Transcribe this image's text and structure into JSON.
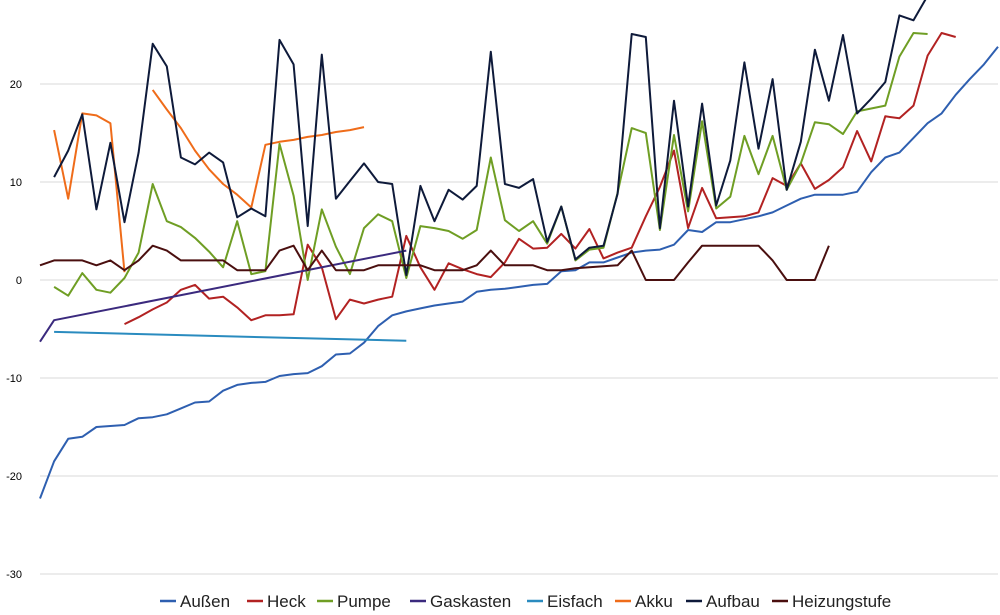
{
  "chart_data": {
    "type": "line",
    "title": "",
    "xlabel": "",
    "ylabel": "",
    "ylim": [
      -30,
      28
    ],
    "yticks": [
      -30,
      -20,
      -10,
      0,
      10,
      20
    ],
    "grid": "horizontal",
    "legend_position": "bottom",
    "series": [
      {
        "name": "Außen",
        "color": "#2e5fb0",
        "start": 0,
        "values": [
          -22.3,
          -18.5,
          -16.2,
          -16.0,
          -15.0,
          -14.9,
          -14.8,
          -14.1,
          -14.0,
          -13.7,
          -13.1,
          -12.5,
          -12.4,
          -11.3,
          -10.7,
          -10.5,
          -10.4,
          -9.8,
          -9.6,
          -9.5,
          -8.8,
          -7.6,
          -7.5,
          -6.4,
          -4.7,
          -3.6,
          -3.2,
          -2.9,
          -2.6,
          -2.4,
          -2.2,
          -1.2,
          -1.0,
          -0.9,
          -0.7,
          -0.5,
          -0.4,
          0.9,
          1.0,
          1.8,
          1.8,
          2.3,
          2.8,
          3.0,
          3.1,
          3.6,
          5.1,
          4.9,
          5.9,
          5.9,
          6.2,
          6.5,
          6.9,
          7.6,
          8.3,
          8.7,
          8.7,
          8.7,
          9.0,
          11.0,
          12.5,
          13.0,
          14.5,
          16.0,
          17.0,
          18.9,
          20.5,
          22.0,
          23.8
        ]
      },
      {
        "name": "Heck",
        "color": "#b22222",
        "start": 6,
        "values": [
          -4.5,
          -3.8,
          -3.0,
          -2.3,
          -1.0,
          -0.5,
          -1.9,
          -1.7,
          -2.8,
          -4.1,
          -3.6,
          -3.6,
          -3.5,
          3.6,
          1.3,
          -4.0,
          -2.0,
          -2.4,
          -2.0,
          -1.7,
          4.5,
          1.3,
          -1.0,
          1.7,
          1.1,
          0.6,
          0.3,
          1.8,
          4.2,
          3.2,
          3.3,
          4.7,
          3.2,
          5.2,
          2.2,
          2.8,
          3.3,
          6.5,
          9.5,
          13.2,
          5.3,
          9.4,
          6.3,
          6.4,
          6.5,
          6.9,
          10.4,
          9.6,
          11.9,
          9.3,
          10.2,
          11.5,
          15.2,
          12.1,
          16.7,
          16.5,
          17.8,
          22.9,
          25.2,
          24.8
        ]
      },
      {
        "name": "Pumpe",
        "color": "#6f9e24",
        "start": 1,
        "values": [
          -0.7,
          -1.6,
          0.7,
          -1.0,
          -1.3,
          0.2,
          2.8,
          9.8,
          6.0,
          5.4,
          4.3,
          2.9,
          1.3,
          6.0,
          0.6,
          0.9,
          13.9,
          8.6,
          0.0,
          7.2,
          3.4,
          0.6,
          5.3,
          6.7,
          6.0,
          0.2,
          5.5,
          5.3,
          5.0,
          4.2,
          5.1,
          12.5,
          6.1,
          5.0,
          6.0,
          3.7,
          7.5,
          2.0,
          3.1,
          3.3,
          8.9,
          15.5,
          15.0,
          5.1,
          14.8,
          7.0,
          16.2,
          7.3,
          8.5,
          14.7,
          10.8,
          14.7,
          9.2,
          11.9,
          16.1,
          15.9,
          14.9,
          17.2,
          17.5,
          17.8,
          22.8,
          25.2,
          25.1
        ]
      },
      {
        "name": "Gaskasten",
        "color": "#3b2a7e",
        "points": [
          [
            0,
            -6.3
          ],
          [
            1,
            -4.1
          ],
          [
            26,
            3.0
          ]
        ]
      },
      {
        "name": "Eisfach",
        "color": "#2a8bbf",
        "points": [
          [
            1,
            -5.3
          ],
          [
            26,
            -6.2
          ]
        ]
      },
      {
        "name": "Akku",
        "color": "#ef6c1a",
        "start": 1,
        "values": [
          15.3,
          8.3,
          17.0,
          16.8,
          16.0,
          0.8,
          null,
          19.4,
          17.4,
          15.5,
          13.2,
          11.3,
          9.8,
          8.7,
          7.4,
          13.8,
          14.1,
          14.3,
          14.6,
          14.8,
          15.1,
          15.3,
          15.6
        ]
      },
      {
        "name": "Aufbau",
        "color": "#0e1a3a",
        "start": 1,
        "values": [
          10.5,
          13.2,
          16.9,
          7.2,
          14.0,
          5.9,
          13.0,
          24.1,
          21.8,
          12.5,
          11.8,
          13.0,
          12.0,
          6.4,
          7.3,
          6.5,
          24.5,
          22.0,
          5.5,
          23.0,
          8.3,
          10.1,
          11.9,
          10.0,
          9.8,
          0.5,
          9.6,
          6.0,
          9.2,
          8.2,
          9.6,
          23.3,
          9.8,
          9.4,
          10.3,
          3.9,
          7.5,
          2.1,
          3.3,
          3.5,
          8.8,
          25.1,
          24.8,
          5.3,
          18.3,
          7.5,
          18.0,
          7.6,
          12.2,
          22.2,
          13.4,
          20.5,
          9.2,
          14.1,
          23.5,
          18.3,
          25.0,
          17.0,
          18.5,
          20.2,
          27.0,
          26.5,
          29.0
        ]
      },
      {
        "name": "Heizungstufe",
        "color": "#4a0f0f",
        "start": 0,
        "values": [
          1.5,
          2.0,
          2.0,
          2.0,
          1.5,
          2.0,
          1.0,
          2.0,
          3.5,
          3.0,
          2.0,
          2.0,
          2.0,
          2.0,
          1.0,
          1.0,
          1.0,
          3.0,
          3.5,
          1.0,
          3.0,
          1.0,
          1.0,
          1.0,
          1.5,
          1.5,
          1.5,
          1.5,
          1.0,
          1.0,
          1.0,
          1.5,
          3.0,
          1.5,
          1.5,
          1.5,
          1.0,
          1.0,
          1.2,
          1.3,
          1.4,
          1.5,
          3.0,
          0.0,
          0.0,
          0.0,
          1.8,
          3.5,
          3.5,
          3.5,
          3.5,
          3.5,
          2.0,
          0.0,
          0.0,
          0.0,
          3.5
        ]
      }
    ]
  }
}
